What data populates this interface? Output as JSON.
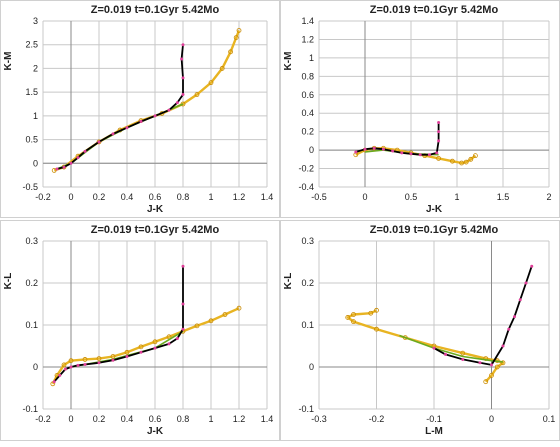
{
  "chart_data": [
    {
      "type": "line",
      "title": "Z=0.019  t=0.1Gyr  5.42Mo",
      "xlabel": "J-K",
      "ylabel": "K-M",
      "xlim": [
        -0.2,
        1.4
      ],
      "ylim": [
        -0.5,
        3
      ],
      "xticks": [
        "-0.2",
        "0",
        "0.2",
        "0.4",
        "0.6",
        "0.8",
        "1",
        "1.2",
        "1.4"
      ],
      "yticks": [
        "-0.5",
        "0",
        "0.5",
        "1",
        "1.5",
        "2",
        "2.5",
        "3"
      ],
      "grid": true,
      "series": [
        {
          "color": "#000000",
          "markers": "#e0409a",
          "x": [
            -0.1,
            -0.05,
            0.0,
            0.05,
            0.1,
            0.2,
            0.3,
            0.4,
            0.5,
            0.6,
            0.7,
            0.76,
            0.8,
            0.8,
            0.79,
            0.8
          ],
          "y": [
            -0.12,
            -0.08,
            0.0,
            0.12,
            0.25,
            0.45,
            0.62,
            0.75,
            0.88,
            1.0,
            1.12,
            1.28,
            1.45,
            1.8,
            2.2,
            2.5
          ]
        },
        {
          "color": "#6aaa1f",
          "x": [
            -0.1,
            0.0,
            0.2,
            0.4,
            0.6,
            0.8
          ],
          "y": [
            -0.12,
            0.0,
            0.45,
            0.75,
            1.0,
            1.25
          ]
        },
        {
          "color": "#e8b422",
          "x": [
            -0.12,
            -0.05,
            0.05,
            0.2,
            0.35,
            0.5,
            0.65,
            0.8,
            0.9,
            1.0,
            1.08,
            1.14,
            1.18,
            1.2
          ],
          "y": [
            -0.15,
            -0.08,
            0.15,
            0.45,
            0.7,
            0.9,
            1.05,
            1.25,
            1.45,
            1.7,
            2.0,
            2.35,
            2.65,
            2.8
          ]
        }
      ]
    },
    {
      "type": "line",
      "title": "Z=0.019  t=0.1Gyr  5.42Mo",
      "xlabel": "J-K",
      "ylabel": "K-M",
      "xlim": [
        -0.5,
        2
      ],
      "ylim": [
        -0.4,
        1.4
      ],
      "xticks": [
        "-0.5",
        "0",
        "0.5",
        "1",
        "1.5",
        "2"
      ],
      "yticks": [
        "-0.4",
        "-0.2",
        "0",
        "0.2",
        "0.4",
        "0.6",
        "0.8",
        "1",
        "1.2",
        "1.4"
      ],
      "grid": true,
      "series": [
        {
          "color": "#000000",
          "markers": "#e0409a",
          "x": [
            -0.1,
            0.0,
            0.1,
            0.2,
            0.3,
            0.4,
            0.5,
            0.6,
            0.7,
            0.78,
            0.8,
            0.8,
            0.8
          ],
          "y": [
            -0.02,
            0.01,
            0.02,
            0.01,
            -0.01,
            -0.03,
            -0.04,
            -0.05,
            -0.05,
            -0.03,
            0.1,
            0.2,
            0.3
          ]
        },
        {
          "color": "#6aaa1f",
          "x": [
            0.0,
            0.2,
            0.5,
            0.8
          ],
          "y": [
            -0.02,
            0.0,
            -0.04,
            -0.05
          ]
        },
        {
          "color": "#e8b422",
          "x": [
            -0.1,
            0.0,
            0.1,
            0.2,
            0.35,
            0.5,
            0.65,
            0.8,
            0.95,
            1.05,
            1.1,
            1.15,
            1.2
          ],
          "y": [
            -0.05,
            0.0,
            0.02,
            0.02,
            0.0,
            -0.03,
            -0.06,
            -0.09,
            -0.12,
            -0.14,
            -0.13,
            -0.1,
            -0.06
          ]
        }
      ]
    },
    {
      "type": "line",
      "title": "Z=0.019  t=0.1Gyr  5.42Mo",
      "xlabel": "J-K",
      "ylabel": "K-L",
      "xlim": [
        -0.2,
        1.4
      ],
      "ylim": [
        -0.1,
        0.3
      ],
      "xticks": [
        "-0.2",
        "0",
        "0.2",
        "0.4",
        "0.6",
        "0.8",
        "1",
        "1.2",
        "1.4"
      ],
      "yticks": [
        "-0.1",
        "0",
        "0.1",
        "0.2",
        "0.3"
      ],
      "grid": true,
      "series": [
        {
          "color": "#000000",
          "markers": "#e0409a",
          "x": [
            -0.12,
            -0.08,
            -0.04,
            0.0,
            0.05,
            0.1,
            0.2,
            0.3,
            0.4,
            0.5,
            0.6,
            0.7,
            0.76,
            0.8,
            0.8,
            0.8
          ],
          "y": [
            -0.035,
            -0.02,
            -0.005,
            0.0,
            0.004,
            0.006,
            0.01,
            0.016,
            0.025,
            0.035,
            0.045,
            0.055,
            0.068,
            0.09,
            0.15,
            0.24
          ]
        },
        {
          "color": "#6aaa1f",
          "x": [
            0.0,
            0.3,
            0.6,
            0.8
          ],
          "y": [
            0.0,
            0.018,
            0.045,
            0.085
          ]
        },
        {
          "color": "#e8b422",
          "x": [
            -0.13,
            -0.1,
            -0.05,
            0.0,
            0.1,
            0.2,
            0.3,
            0.4,
            0.5,
            0.6,
            0.7,
            0.8,
            0.9,
            1.0,
            1.1,
            1.2
          ],
          "y": [
            -0.04,
            -0.02,
            0.005,
            0.015,
            0.018,
            0.02,
            0.025,
            0.035,
            0.048,
            0.06,
            0.072,
            0.085,
            0.098,
            0.11,
            0.125,
            0.14
          ]
        }
      ]
    },
    {
      "type": "line",
      "title": "Z=0.019  t=0.1Gyr  5.42Mo",
      "xlabel": "L-M",
      "ylabel": "K-L",
      "xlim": [
        -0.3,
        0.1
      ],
      "ylim": [
        -0.1,
        0.3
      ],
      "xticks": [
        "-0.3",
        "-0.2",
        "-0.1",
        "0",
        "0.1"
      ],
      "yticks": [
        "-0.1",
        "0",
        "0.1",
        "0.2",
        "0.3"
      ],
      "grid": true,
      "series": [
        {
          "color": "#000000",
          "markers": "#e0409a",
          "x": [
            -0.1,
            -0.08,
            -0.05,
            -0.02,
            0.0,
            0.02,
            0.03,
            0.04,
            0.05,
            0.06,
            0.07
          ],
          "y": [
            0.045,
            0.03,
            0.018,
            0.01,
            0.005,
            0.05,
            0.09,
            0.12,
            0.16,
            0.2,
            0.24
          ]
        },
        {
          "color": "#6aaa1f",
          "x": [
            -0.16,
            -0.1,
            -0.05,
            0.0,
            0.02
          ],
          "y": [
            0.075,
            0.045,
            0.025,
            0.015,
            0.012
          ]
        },
        {
          "color": "#e8b422",
          "x": [
            -0.2,
            -0.21,
            -0.24,
            -0.25,
            -0.24,
            -0.2,
            -0.15,
            -0.1,
            -0.05,
            -0.01,
            0.01,
            0.02,
            0.01,
            0.0,
            -0.01
          ],
          "y": [
            0.135,
            0.128,
            0.125,
            0.118,
            0.108,
            0.09,
            0.07,
            0.05,
            0.033,
            0.02,
            0.015,
            0.01,
            0.0,
            -0.02,
            -0.035
          ]
        }
      ]
    }
  ]
}
